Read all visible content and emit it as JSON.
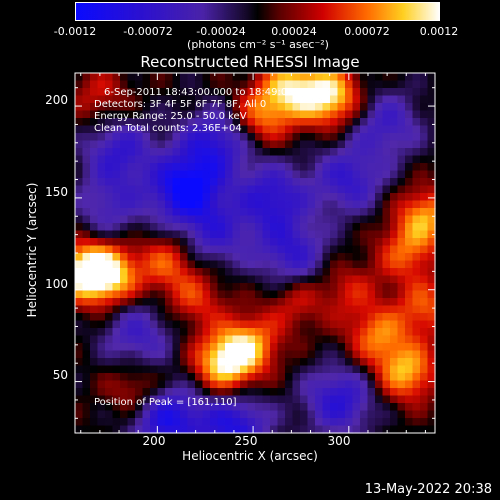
{
  "colorbar": {
    "ticks": [
      "-0.0012",
      "-0.00072",
      "-0.00024",
      "0.00024",
      "0.00072",
      "0.0012"
    ],
    "unit_label": "(photons cm⁻² s⁻¹ asec⁻²)",
    "min": -0.0012,
    "max": 0.0012
  },
  "chart_data": {
    "type": "heatmap",
    "title": "Reconstructed RHESSI Image",
    "xlabel": "Heliocentric X (arcsec)",
    "ylabel": "Heliocentric Y (arcsec)",
    "xlim": [
      157,
      345
    ],
    "ylim": [
      22,
      218
    ],
    "x_ticks": [
      200,
      250,
      300
    ],
    "y_ticks": [
      50,
      100,
      150,
      200
    ],
    "annotations": [
      "6-Sep-2011 18:43:00.000 to 18:49:00.000",
      "Detectors: 3F 4F 5F 6F 7F 8F, All 0",
      "Energy Range: 25.0 - 50.0 keV",
      "Clean     Total counts: 2.36E+04"
    ],
    "peak_label": "Position of Peak = [161,110]",
    "peak": [
      161,
      110
    ],
    "peaks": [
      {
        "x": 163,
        "y": 110,
        "v": 0.00115
      },
      {
        "x": 175,
        "y": 108,
        "v": 0.0009
      },
      {
        "x": 290,
        "y": 205,
        "v": 0.0011
      },
      {
        "x": 270,
        "y": 210,
        "v": 0.0009
      },
      {
        "x": 255,
        "y": 195,
        "v": 0.0007
      },
      {
        "x": 235,
        "y": 60,
        "v": 0.0011
      },
      {
        "x": 248,
        "y": 70,
        "v": 0.0008
      },
      {
        "x": 330,
        "y": 55,
        "v": 0.0009
      },
      {
        "x": 315,
        "y": 75,
        "v": 0.0007
      },
      {
        "x": 340,
        "y": 140,
        "v": 0.0008
      },
      {
        "x": 330,
        "y": 120,
        "v": 0.0006
      },
      {
        "x": 205,
        "y": 115,
        "v": 0.0006
      },
      {
        "x": 190,
        "y": 45,
        "v": 0.0005
      },
      {
        "x": 340,
        "y": 90,
        "v": 0.0006
      },
      {
        "x": 300,
        "y": 100,
        "v": 0.0004
      },
      {
        "x": 170,
        "y": 205,
        "v": 0.0004
      },
      {
        "x": 220,
        "y": 95,
        "v": 0.0005
      },
      {
        "x": 272,
        "y": 93,
        "v": 0.0004
      }
    ],
    "troughs": [
      {
        "x": 215,
        "y": 155,
        "v": -0.0012
      },
      {
        "x": 260,
        "y": 150,
        "v": -0.0008
      },
      {
        "x": 300,
        "y": 160,
        "v": -0.0007
      },
      {
        "x": 180,
        "y": 175,
        "v": -0.0007
      },
      {
        "x": 230,
        "y": 180,
        "v": -0.0008
      },
      {
        "x": 270,
        "y": 120,
        "v": -0.0007
      },
      {
        "x": 205,
        "y": 30,
        "v": -0.001
      },
      {
        "x": 240,
        "y": 25,
        "v": -0.0009
      },
      {
        "x": 295,
        "y": 40,
        "v": -0.0008
      },
      {
        "x": 190,
        "y": 75,
        "v": -0.0006
      },
      {
        "x": 320,
        "y": 190,
        "v": -0.0006
      },
      {
        "x": 230,
        "y": 130,
        "v": -0.0006
      },
      {
        "x": 175,
        "y": 145,
        "v": -0.0005
      }
    ],
    "colormap": "red-temperature (blue-purple for negative, black near zero, red-orange-yellow-white for positive)"
  },
  "timestamp": "13-May-2022 20:38"
}
